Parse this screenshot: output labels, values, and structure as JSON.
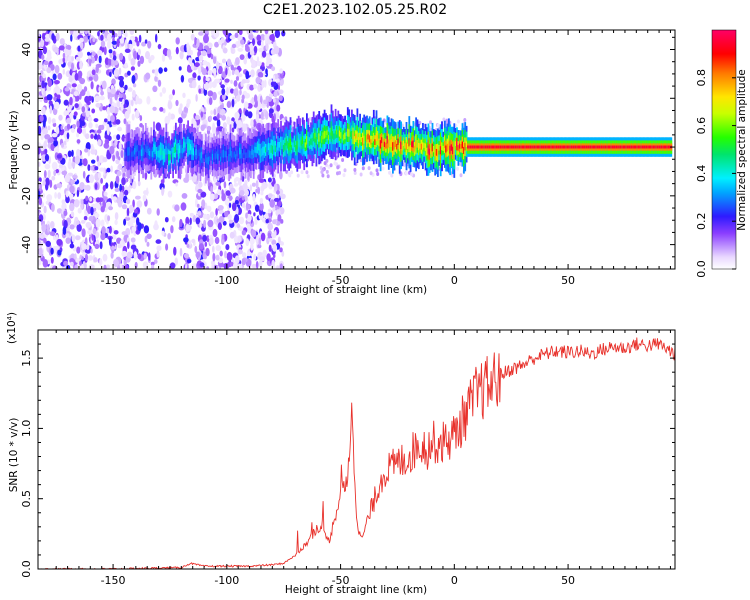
{
  "title": "C2E1.2023.102.05.25.R02",
  "colorbar": {
    "label": "Normalized spectral amplitude",
    "ticks": [
      "0.0",
      "0.2",
      "0.4",
      "0.6",
      "0.8"
    ],
    "range": [
      0,
      1
    ]
  },
  "chart_data": [
    {
      "type": "heatmap",
      "xlabel": "Height of straight line (km)",
      "ylabel": "Frequency (Hz)",
      "xlim": [
        -183,
        97
      ],
      "ylim": [
        -50,
        48
      ],
      "xticks": [
        "-150",
        "-100",
        "-50",
        "0",
        "50"
      ],
      "yticks": [
        "-40",
        "-20",
        "0",
        "20",
        "40"
      ],
      "ridge": {
        "x": [
          -145,
          -135,
          -125,
          -118,
          -110,
          -100,
          -90,
          -80,
          -70,
          -60,
          -52,
          -45,
          -35,
          -25,
          -15,
          -8,
          -3,
          5,
          20,
          50,
          95
        ],
        "y": [
          -3,
          -1,
          -3,
          1,
          -5,
          -3,
          -2,
          0,
          1,
          4,
          6,
          4,
          3,
          1,
          0,
          -1,
          0,
          0,
          0,
          0,
          0
        ],
        "amplitude": [
          0.25,
          0.35,
          0.45,
          0.4,
          0.3,
          0.3,
          0.35,
          0.45,
          0.55,
          0.6,
          0.6,
          0.7,
          0.85,
          0.9,
          0.9,
          0.9,
          0.9,
          0.95,
          0.95,
          0.95,
          0.95
        ]
      }
    },
    {
      "type": "line",
      "xlabel": "Height of straight line (km)",
      "ylabel": "SNR (10 * v/v)",
      "yscale_label": "(x10⁴)",
      "xlim": [
        -183,
        97
      ],
      "ylim": [
        0,
        1.7
      ],
      "xticks": [
        "-150",
        "-100",
        "-50",
        "0",
        "50"
      ],
      "yticks": [
        "0.0",
        "0.5",
        "1.0",
        "1.5"
      ],
      "line_color": "#e8312b",
      "series": [
        {
          "x": [
            -183,
            -150,
            -120,
            -116,
            -110,
            -90,
            -80,
            -75,
            -70,
            -65,
            -60,
            -55,
            -52,
            -50,
            -47,
            -45,
            -43,
            -41,
            -38,
            -35,
            -32,
            -30,
            -25,
            -20,
            -15,
            -12,
            -10,
            -5,
            0,
            5,
            10,
            15,
            20,
            25,
            30,
            35,
            40,
            45,
            50,
            55,
            60,
            65,
            70,
            75,
            80,
            85,
            90,
            95,
            97
          ],
          "y": [
            0.0,
            0.0,
            0.01,
            0.04,
            0.02,
            0.02,
            0.03,
            0.04,
            0.1,
            0.18,
            0.3,
            0.2,
            0.4,
            0.55,
            0.6,
            1.15,
            0.4,
            0.2,
            0.35,
            0.5,
            0.65,
            0.7,
            0.75,
            0.8,
            0.9,
            0.85,
            0.9,
            0.9,
            0.95,
            1.1,
            1.25,
            1.3,
            1.38,
            1.42,
            1.45,
            1.5,
            1.53,
            1.55,
            1.54,
            1.55,
            1.53,
            1.56,
            1.58,
            1.57,
            1.6,
            1.59,
            1.6,
            1.55,
            1.53
          ]
        }
      ]
    }
  ]
}
